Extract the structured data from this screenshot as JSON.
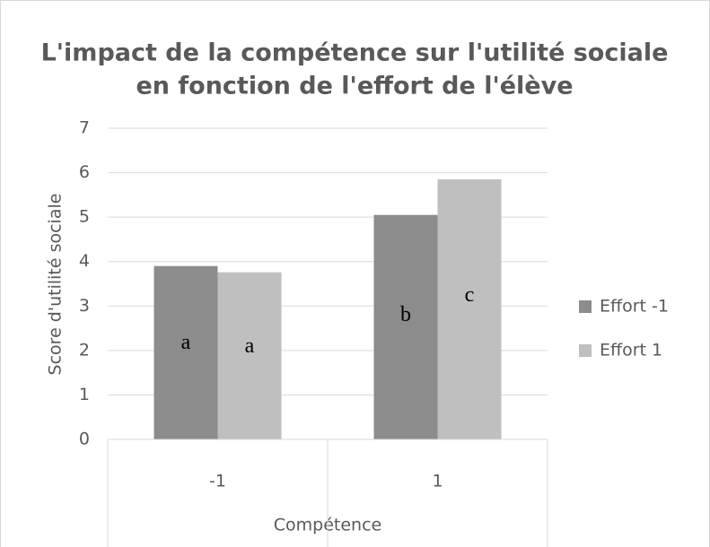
{
  "chart_data": {
    "type": "bar",
    "title_lines": [
      "L'impact de la compétence sur l'utilité sociale",
      "en fonction de l'effort de l'élève"
    ],
    "y_label": "Score d'utilité sociale",
    "x_label": "Compétence",
    "categories": [
      "-1",
      "1"
    ],
    "series": [
      {
        "name": "Effort -1",
        "color": "#8c8c8c",
        "values": [
          3.9,
          5.05
        ],
        "labels": [
          "a",
          "b"
        ]
      },
      {
        "name": "Effort 1",
        "color": "#bfbfbf",
        "values": [
          3.76,
          5.85
        ],
        "labels": [
          "a",
          "c"
        ]
      }
    ],
    "ylim": [
      0,
      7
    ],
    "yticks": [
      0,
      1,
      2,
      3,
      4,
      5,
      6,
      7
    ],
    "grid": true,
    "legend": "right"
  }
}
